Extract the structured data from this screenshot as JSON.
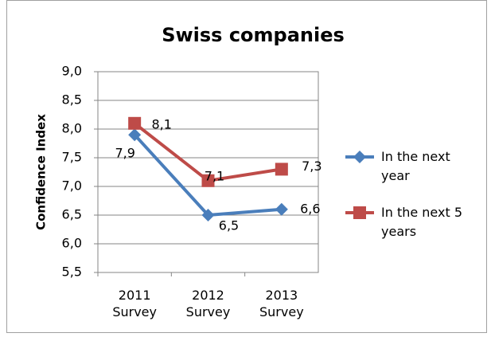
{
  "chart_data": {
    "type": "line",
    "title": "Swiss companies",
    "y_label": "Confidence Index",
    "categories": [
      "2011 Survey",
      "2012 Survey",
      "2013 Survey"
    ],
    "series": [
      {
        "name": "In the next year",
        "color": "#4a7ebb",
        "marker": "diamond",
        "values": [
          7.9,
          6.5,
          6.6
        ],
        "value_labels": [
          "7,9",
          "6,5",
          "6,6"
        ]
      },
      {
        "name": "In the next 5 years",
        "color": "#be4b48",
        "marker": "square",
        "values": [
          8.1,
          7.1,
          7.3
        ],
        "value_labels": [
          "8,1",
          "7,1",
          "7,3"
        ]
      }
    ],
    "ylim": [
      5.5,
      9.0
    ],
    "yticks": [
      {
        "value": 5.5,
        "label": "5,5"
      },
      {
        "value": 6.0,
        "label": "6,0"
      },
      {
        "value": 6.5,
        "label": "6,5"
      },
      {
        "value": 7.0,
        "label": "7,0"
      },
      {
        "value": 7.5,
        "label": "7,5"
      },
      {
        "value": 8.0,
        "label": "8,0"
      },
      {
        "value": 8.5,
        "label": "8,5"
      },
      {
        "value": 9.0,
        "label": "9,0"
      }
    ],
    "grid": true,
    "legend": "right"
  }
}
